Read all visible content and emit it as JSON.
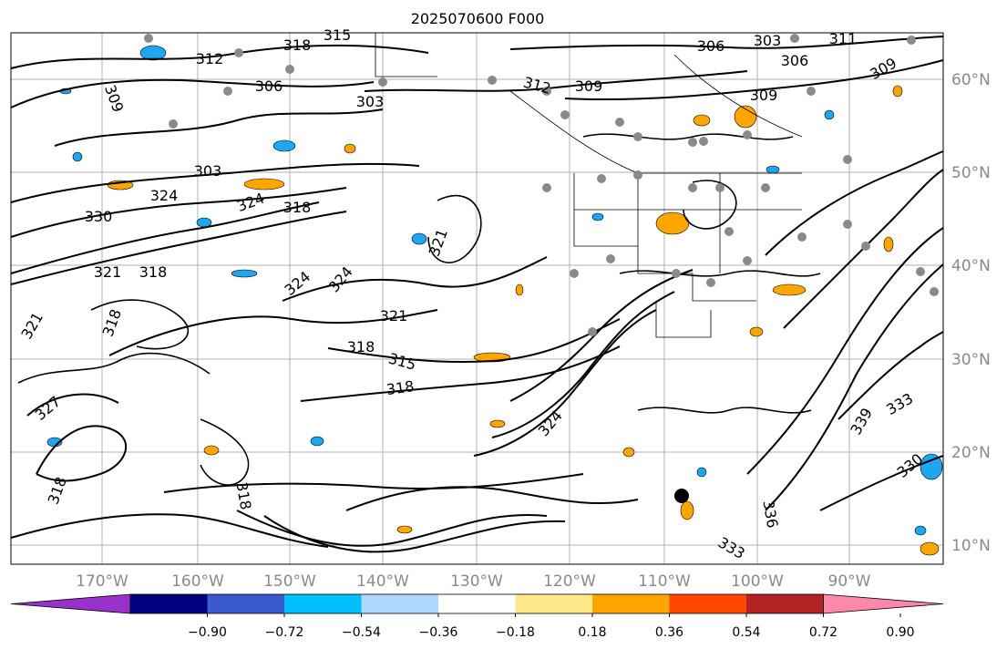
{
  "title": "2025070600 F000",
  "map": {
    "lat_labels": [
      "60°N",
      "50°N",
      "40°N",
      "30°N",
      "20°N",
      "10°N"
    ],
    "lon_labels": [
      "170°W",
      "160°W",
      "150°W",
      "140°W",
      "130°W",
      "120°W",
      "110°W",
      "100°W",
      "90°W"
    ],
    "contour_labels": [
      "318",
      "315",
      "312",
      "309",
      "306",
      "303",
      "312",
      "309",
      "306",
      "303",
      "309",
      "306",
      "303",
      "311",
      "309",
      "324",
      "324",
      "318",
      "321",
      "330",
      "321",
      "318",
      "324",
      "324",
      "321",
      "318",
      "315",
      "318",
      "321",
      "318",
      "324",
      "318",
      "327",
      "318",
      "336",
      "339",
      "330",
      "333",
      "333"
    ],
    "colors": {
      "negative": "#1ea7f0",
      "positive": "#ffa500",
      "contour": "#000000",
      "grid": "#b0b0b0"
    }
  },
  "colorbar": {
    "colors": [
      "#9932cc",
      "#000080",
      "#3a5bd0",
      "#00bfff",
      "#add8ff",
      "#ffffff",
      "#ffe98a",
      "#ffa500",
      "#ff4500",
      "#b22222",
      "#ff88aa"
    ],
    "tick_labels": [
      "−0.90",
      "−0.72",
      "−0.54",
      "−0.36",
      "−0.18",
      "0.18",
      "0.36",
      "0.54",
      "0.72",
      "0.90"
    ]
  }
}
